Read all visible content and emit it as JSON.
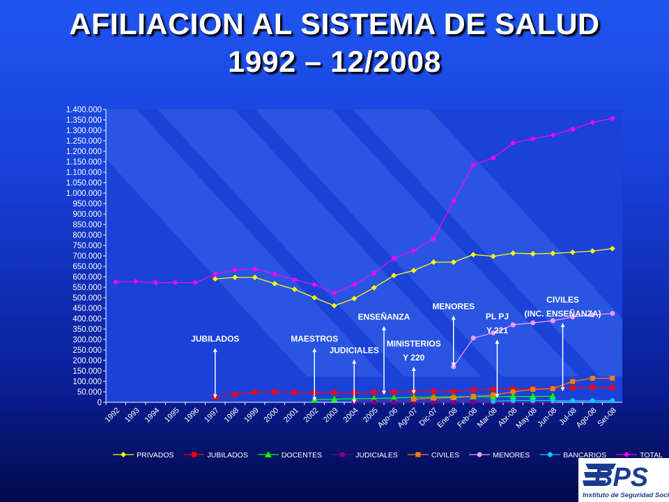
{
  "slide": {
    "title_line1": "AFILIACION AL SISTEMA DE SALUD",
    "title_line2": "1992 – 12/2008"
  },
  "logo": {
    "brand": "BPS",
    "subtitle": "Instituto de Seguridad Social",
    "colors": {
      "primary": "#1c3b8f",
      "secondary": "#ffffff"
    }
  },
  "colors": {
    "background_top": "#1f55f0",
    "background_bottom": "#020a4a",
    "plot_background": "#1a41d8",
    "text": "#ffffff"
  },
  "chart_data": {
    "type": "line",
    "ylim": [
      0,
      1400000
    ],
    "yticks": [
      "0",
      "50.000",
      "100.000",
      "150.000",
      "200.000",
      "250.000",
      "300.000",
      "350.000",
      "400.000",
      "450.000",
      "500.000",
      "550.000",
      "600.000",
      "650.000",
      "700.000",
      "750.000",
      "800.000",
      "850.000",
      "900.000",
      "950.000",
      "1.000.000",
      "1.050.000",
      "1.100.000",
      "1.150.000",
      "1.200.000",
      "1.250.000",
      "1.300.000",
      "1.350.000",
      "1.400.000"
    ],
    "categories": [
      "1992",
      "1993",
      "1994",
      "1995",
      "1996",
      "1997",
      "1998",
      "1999",
      "2000",
      "2001",
      "2002",
      "2003",
      "2004",
      "2005",
      "Ago-06",
      "Ago-07",
      "Dic-07",
      "Ene-08",
      "Feb-08",
      "Mar-08",
      "Abr-08",
      "May-08",
      "Jun-08",
      "Jul-08",
      "Ago-08",
      "Set-08"
    ],
    "legend_position": "bottom",
    "series": [
      {
        "name": "PRIVADOS",
        "color": "#ffff00",
        "marker": "diamond",
        "values": [
          null,
          null,
          null,
          null,
          null,
          590000,
          597000,
          597000,
          567000,
          540000,
          500000,
          462000,
          496000,
          548000,
          606000,
          630000,
          670000,
          670000,
          706000,
          698000,
          713000,
          710000,
          712000,
          717000,
          723000,
          735000
        ]
      },
      {
        "name": "JUBILADOS",
        "color": "#ff0000",
        "marker": "square",
        "values": [
          null,
          null,
          null,
          null,
          null,
          25000,
          38000,
          49000,
          49000,
          47000,
          45000,
          47000,
          47000,
          48000,
          49000,
          50000,
          52000,
          52000,
          60000,
          62000,
          64000,
          65000,
          66000,
          70000,
          70000,
          70000
        ]
      },
      {
        "name": "DOCENTES",
        "color": "#00ff00",
        "marker": "triangle",
        "values": [
          null,
          null,
          null,
          null,
          null,
          null,
          null,
          null,
          null,
          null,
          13000,
          15000,
          17000,
          18000,
          21000,
          24000,
          25000,
          26000,
          27000,
          27000,
          28000,
          28000,
          29000,
          null,
          null,
          null
        ]
      },
      {
        "name": "JUDICIALES",
        "color": "#800080",
        "marker": "square",
        "values": [
          null,
          null,
          null,
          null,
          null,
          null,
          null,
          null,
          null,
          null,
          null,
          null,
          1000,
          1000,
          1000,
          1000,
          1000,
          1000,
          1000,
          1000,
          1000,
          1000,
          1000,
          null,
          null,
          null
        ]
      },
      {
        "name": "CIVILES",
        "color": "#ff7f00",
        "marker": "square",
        "values": [
          null,
          null,
          null,
          null,
          null,
          null,
          null,
          null,
          null,
          null,
          null,
          null,
          null,
          null,
          null,
          15000,
          20000,
          22000,
          28000,
          35000,
          50000,
          62000,
          65000,
          100000,
          115000,
          115000
        ]
      },
      {
        "name": "MENORES",
        "color": "#ff99ff",
        "marker": "circle",
        "values": [
          null,
          null,
          null,
          null,
          null,
          null,
          null,
          null,
          null,
          null,
          null,
          null,
          null,
          null,
          null,
          null,
          null,
          170000,
          307000,
          332000,
          370000,
          380000,
          390000,
          408000,
          418000,
          425000
        ]
      },
      {
        "name": "BANCARIOS",
        "color": "#00ccff",
        "marker": "circle",
        "values": [
          null,
          null,
          null,
          null,
          null,
          null,
          null,
          null,
          null,
          null,
          null,
          null,
          null,
          null,
          null,
          null,
          null,
          null,
          null,
          5000,
          8000,
          8000,
          8000,
          8000,
          8000,
          8000
        ]
      },
      {
        "name": "TOTAL",
        "color": "#ff00ff",
        "marker": "diamond",
        "values": [
          575000,
          577000,
          572000,
          572000,
          572000,
          612000,
          633000,
          638000,
          613000,
          586000,
          563000,
          523000,
          563000,
          617000,
          689000,
          725000,
          782000,
          962000,
          1135000,
          1168000,
          1240000,
          1260000,
          1278000,
          1305000,
          1338000,
          1357000
        ]
      }
    ],
    "annotations": [
      {
        "id": "jubilados",
        "lines": [
          "JUBILADOS"
        ],
        "category_index": 5,
        "arrow_top": 250000,
        "arrow_bottom": 28000
      },
      {
        "id": "maestros",
        "lines": [
          "MAESTROS"
        ],
        "category_index": 10,
        "arrow_top": 250000,
        "arrow_bottom": 15000
      },
      {
        "id": "judiciales",
        "lines": [
          "JUDICIALES"
        ],
        "category_index": 12,
        "arrow_top": 195000,
        "arrow_bottom": 3000
      },
      {
        "id": "ensenanza",
        "lines": [
          "ENSEÑANZA"
        ],
        "category_index": 13.5,
        "arrow_top": 355000,
        "arrow_bottom": 45000
      },
      {
        "id": "ministerios",
        "lines": [
          "MINISTERIOS",
          "Y 220"
        ],
        "category_index": 15,
        "arrow_top": 160000,
        "arrow_bottom": 48000
      },
      {
        "id": "menores",
        "lines": [
          "MENORES"
        ],
        "category_index": 17,
        "arrow_top": 405000,
        "arrow_bottom": 180000
      },
      {
        "id": "plpj",
        "lines": [
          "PL PJ",
          "Y 221"
        ],
        "category_index": 19.2,
        "arrow_top": 290000,
        "arrow_bottom": 30000
      },
      {
        "id": "civiles",
        "lines": [
          "CIVILES",
          "(INC. ENSEÑANZA)"
        ],
        "category_index": 22.5,
        "arrow_top": 370000,
        "arrow_bottom": 62000
      }
    ]
  }
}
